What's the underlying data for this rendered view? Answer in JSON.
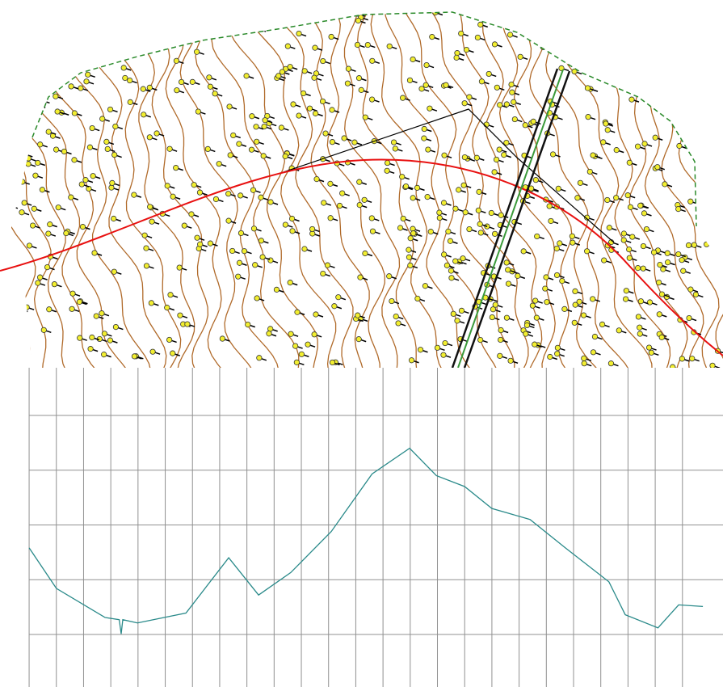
{
  "chart_data": {
    "type": "line",
    "x": [
      0,
      1.0,
      2.79,
      3.31,
      3.38,
      3.44,
      3.98,
      5.76,
      7.33,
      8.43,
      9.61,
      11.1,
      12.6,
      13.98,
      14.96,
      16.0,
      17.0,
      18.4,
      19.7,
      21.3,
      21.9,
      23.1,
      23.86,
      24.75
    ],
    "series": [
      {
        "color": "#2a8a8a",
        "values": [
          1.58,
          0.84,
          0.31,
          0.27,
          0.01,
          0.27,
          0.21,
          0.39,
          1.4,
          0.72,
          1.13,
          1.88,
          2.93,
          3.4,
          2.9,
          2.7,
          2.3,
          2.1,
          1.58,
          0.96,
          0.36,
          0.12,
          0.54,
          0.51
        ]
      }
    ],
    "xlim": [
      -1.07,
      25.49
    ],
    "ylim": [
      -0.96,
      4.87
    ],
    "xticks": [
      0,
      1,
      2,
      3,
      4,
      5,
      6,
      7,
      8,
      9,
      10,
      11,
      12,
      13,
      14,
      15,
      16,
      17,
      18,
      19,
      20,
      21,
      22,
      23,
      24
    ],
    "yticks": [
      0,
      1,
      2,
      3,
      4
    ],
    "grid": true
  }
}
